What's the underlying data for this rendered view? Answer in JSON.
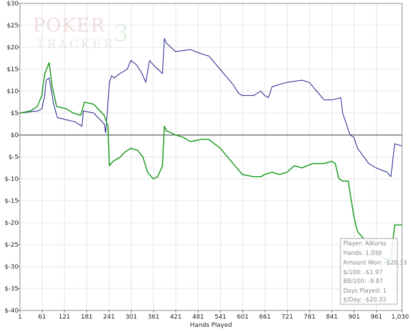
{
  "logo": {
    "word_top": "POKER",
    "word_bottom": "TRACKER",
    "numeral": "3"
  },
  "chart_data": {
    "type": "line",
    "xlabel": "Hands Played",
    "ylabel": "",
    "xlim": [
      1,
      1030
    ],
    "ylim": [
      -40,
      30
    ],
    "x_ticks": [
      1,
      61,
      121,
      181,
      241,
      301,
      361,
      421,
      481,
      541,
      601,
      661,
      721,
      781,
      841,
      901,
      961,
      1030
    ],
    "x_tick_labels": [
      "1",
      "61",
      "121",
      "181",
      "241",
      "301",
      "361",
      "421",
      "481",
      "541",
      "601",
      "661",
      "721",
      "781",
      "841",
      "901",
      "961",
      "1,030"
    ],
    "y_ticks": [
      30,
      25,
      20,
      15,
      10,
      5,
      0,
      -5,
      -10,
      -15,
      -20,
      -25,
      -30,
      -35,
      -40
    ],
    "y_tick_labels": [
      "$30",
      "$25",
      "$20",
      "$15",
      "$10",
      "$5",
      "$0",
      "$-5",
      "$-10",
      "$-15",
      "$-20",
      "$-25",
      "$-30",
      "$-35",
      "$-40"
    ],
    "grid": true,
    "colors": {
      "blue": "#1a1a8c",
      "green": "#1a9a1a",
      "zero_line": "#333333",
      "grid": "#e4e4e4"
    },
    "series": [
      {
        "color": "#1a1a8c",
        "x": [
          1,
          50,
          60,
          68,
          72,
          80,
          86,
          92,
          102,
          125,
          150,
          168,
          172,
          200,
          228,
          232,
          242,
          248,
          255,
          270,
          290,
          300,
          315,
          330,
          340,
          350,
          360,
          385,
          390,
          395,
          420,
          460,
          490,
          510,
          540,
          560,
          575,
          590,
          600,
          630,
          650,
          660,
          670,
          680,
          700,
          720,
          760,
          780,
          790,
          800,
          820,
          840,
          865,
          870,
          890,
          900,
          910,
          940,
          960,
          990,
          1000,
          1010,
          1030
        ],
        "y": [
          5,
          5.5,
          6,
          9,
          12.5,
          13,
          10,
          7,
          4,
          3.5,
          3,
          2,
          5.5,
          5,
          2.5,
          0.5,
          12,
          13.5,
          13,
          14,
          15,
          17,
          16,
          14,
          12,
          17,
          16,
          14,
          22,
          21,
          19,
          19.5,
          18.5,
          18,
          15,
          13,
          11.5,
          9.5,
          9,
          9,
          10,
          9,
          8.5,
          11,
          11.5,
          12,
          12.5,
          12,
          11,
          10,
          8,
          8,
          8.5,
          5,
          0,
          -0.5,
          -3,
          -6.5,
          -7.5,
          -8.5,
          -9.5,
          -2,
          -2.5
        ]
      },
      {
        "color": "#1a9a1a",
        "x": [
          1,
          30,
          48,
          60,
          68,
          80,
          88,
          100,
          125,
          145,
          165,
          175,
          200,
          228,
          238,
          242,
          252,
          262,
          272,
          282,
          300,
          318,
          332,
          345,
          360,
          372,
          385,
          390,
          395,
          420,
          440,
          460,
          490,
          510,
          540,
          560,
          580,
          595,
          600,
          630,
          650,
          660,
          680,
          700,
          720,
          740,
          760,
          790,
          800,
          820,
          840,
          850,
          860,
          870,
          885,
          900,
          910,
          940,
          960,
          990,
          1000,
          1010,
          1030
        ],
        "y": [
          5,
          5.5,
          6.5,
          9,
          14,
          16.5,
          11,
          6.5,
          6,
          5,
          4.5,
          7.5,
          7,
          4.5,
          2,
          -7,
          -6,
          -5.5,
          -5,
          -4,
          -3,
          -3.5,
          -5,
          -8.5,
          -10,
          -9.5,
          -7,
          2,
          1,
          0,
          -0.5,
          -1.5,
          -1,
          -1,
          -3,
          -5,
          -7,
          -8.5,
          -9,
          -9.5,
          -9.5,
          -9,
          -8.5,
          -9,
          -8.5,
          -7,
          -7.5,
          -6.5,
          -6.5,
          -6.5,
          -6,
          -6.5,
          -10,
          -10.5,
          -10.5,
          -18.5,
          -22,
          -25,
          -27,
          -28.5,
          -28,
          -20.5,
          -20.5
        ]
      }
    ]
  },
  "stats_box": {
    "player": "Player: AlKurss",
    "hands": "Hands: 1,030",
    "amount_won": "Amount Won: -$20.33",
    "per100": "$/100: -$1.97",
    "bb100": "BB/100: -9.87",
    "days": "Days Played: 1",
    "perday": "$/Day: -$20.33"
  }
}
